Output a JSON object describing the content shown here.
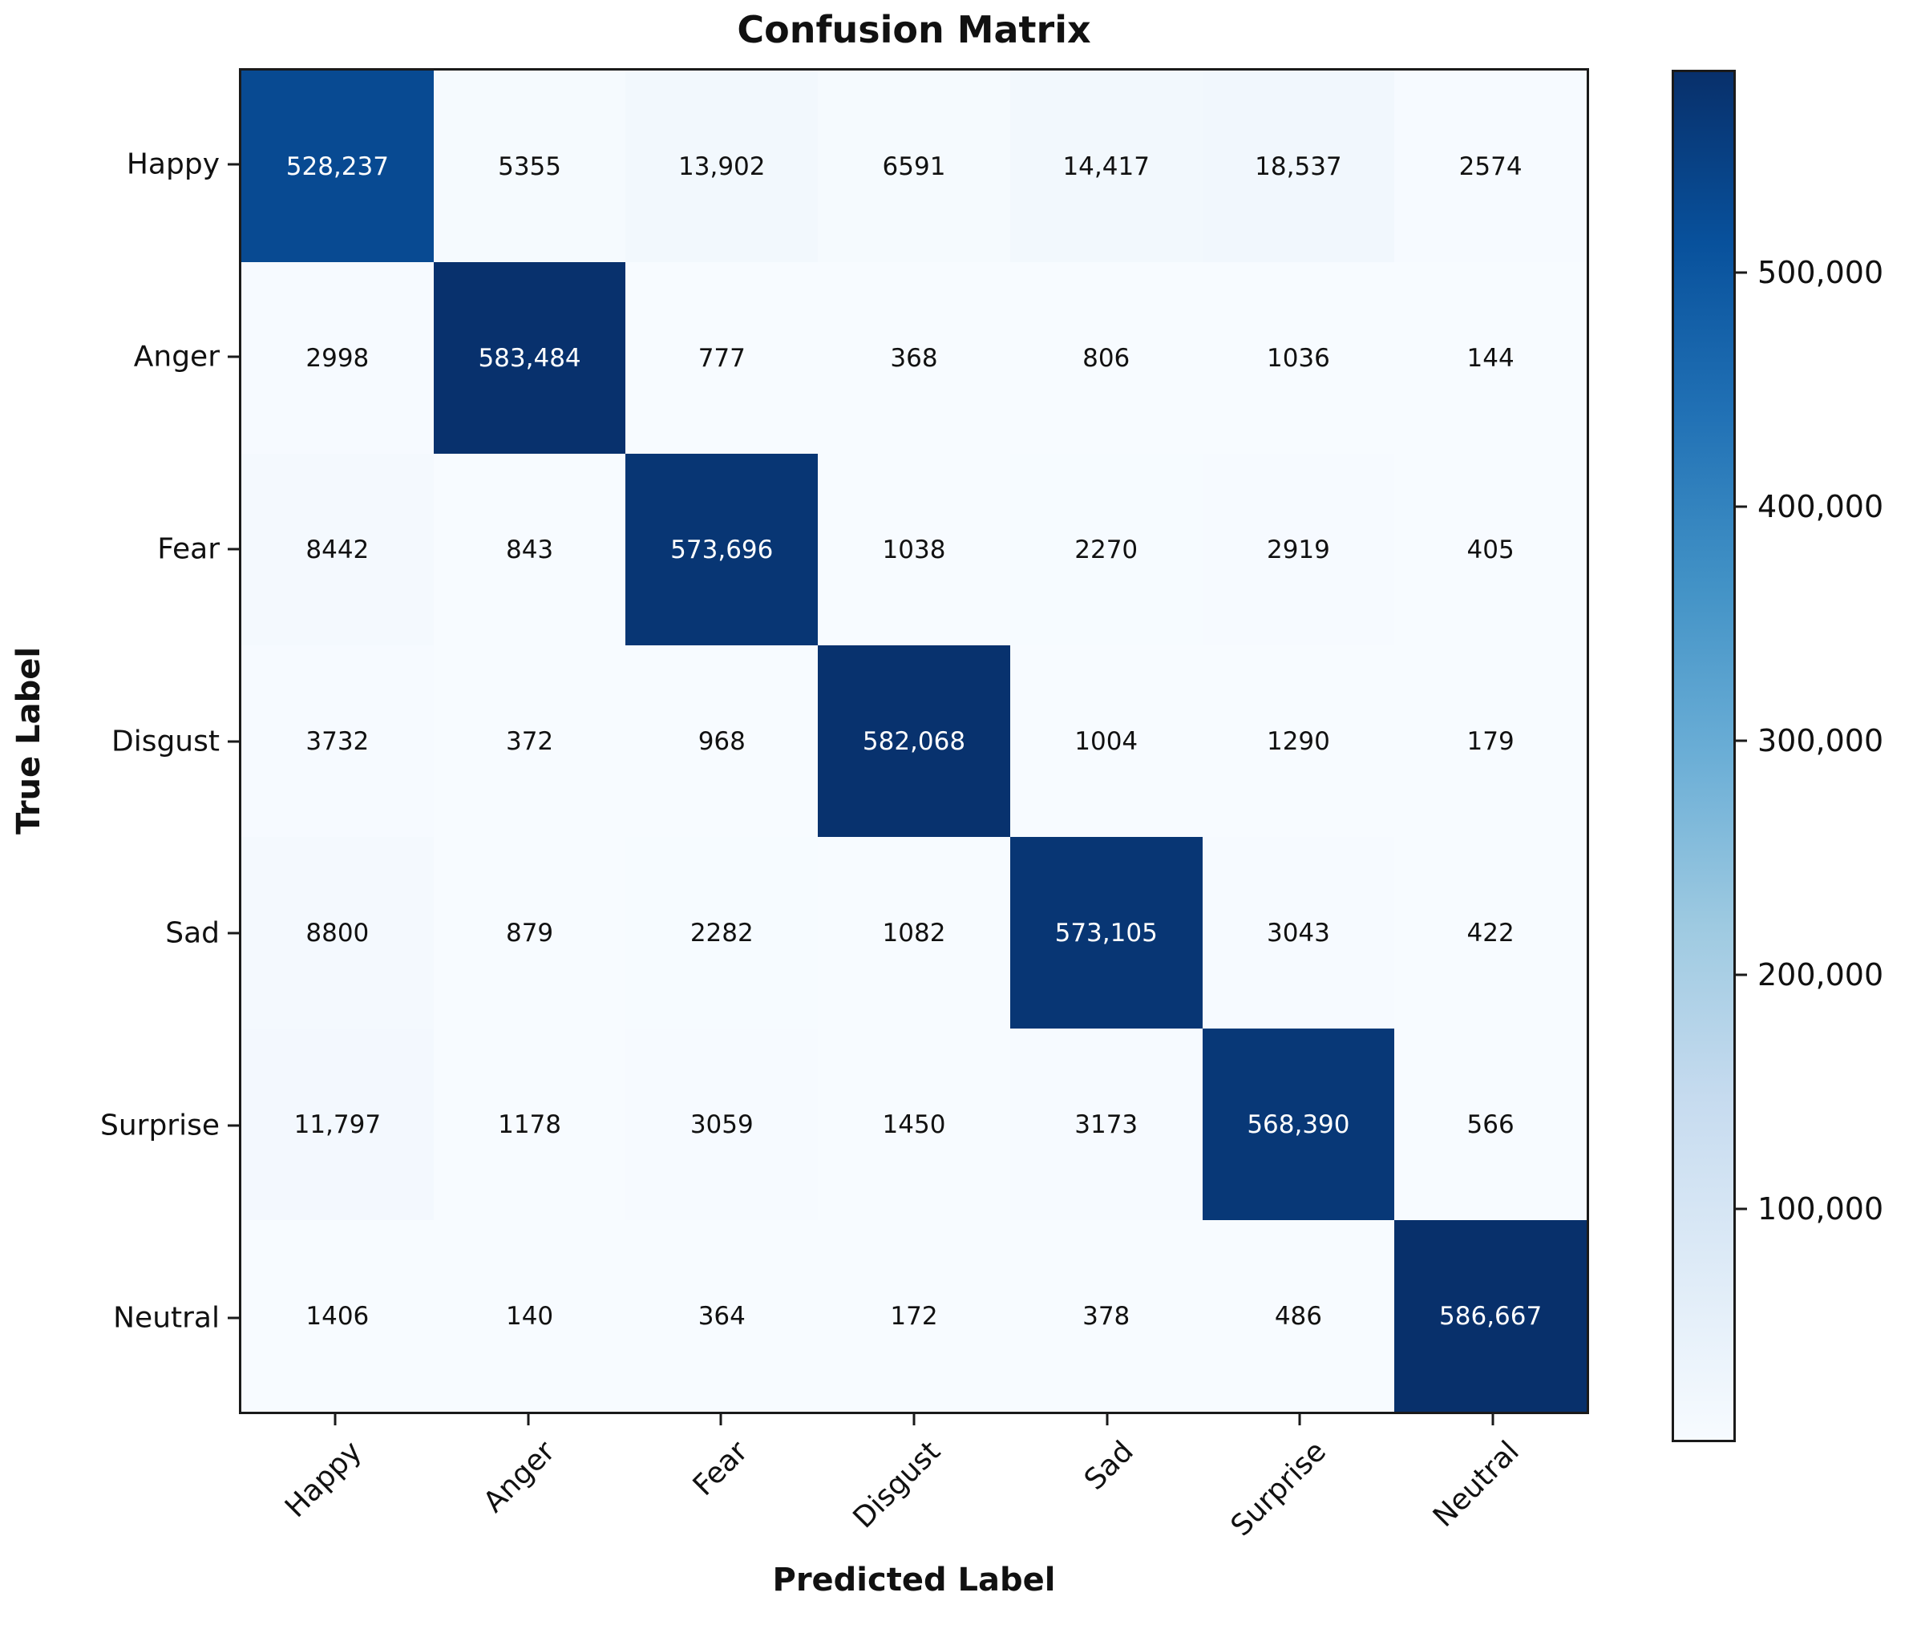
{
  "chart_data": {
    "type": "heatmap",
    "title": "Confusion Matrix",
    "xlabel": "Predicted Label",
    "ylabel": "True Label",
    "categories": [
      "Happy",
      "Anger",
      "Fear",
      "Disgust",
      "Sad",
      "Surprise",
      "Neutral"
    ],
    "matrix": [
      [
        528237,
        5355,
        13902,
        6591,
        14417,
        18537,
        2574
      ],
      [
        2998,
        583484,
        777,
        368,
        806,
        1036,
        144
      ],
      [
        8442,
        843,
        573696,
        1038,
        2270,
        2919,
        405
      ],
      [
        3732,
        372,
        968,
        582068,
        1004,
        1290,
        179
      ],
      [
        8800,
        879,
        2282,
        1082,
        573105,
        3043,
        422
      ],
      [
        11797,
        1178,
        3059,
        1450,
        3173,
        568390,
        566
      ],
      [
        1406,
        140,
        364,
        172,
        378,
        486,
        586667
      ]
    ],
    "vmin": 140,
    "vmax": 586667,
    "colormap": "Blues",
    "colormap_anchors": [
      "#f7fbff",
      "#deebf7",
      "#c6dbef",
      "#9ecae1",
      "#6baed6",
      "#4292c6",
      "#2171b5",
      "#08519c",
      "#08306b"
    ],
    "colorbar_ticks": [
      100000,
      200000,
      300000,
      400000,
      500000
    ],
    "legend_position": "right-colorbar",
    "grid": false,
    "x_tick_rotation_deg": 45
  }
}
